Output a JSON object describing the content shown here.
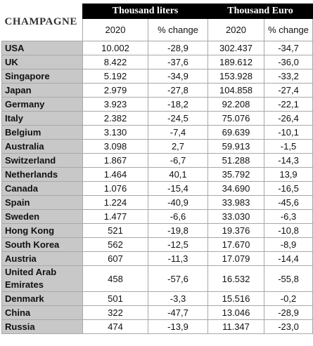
{
  "table": {
    "title": "CHAMPAGNE",
    "groups": [
      "Thousand liters",
      "Thousand Euro"
    ],
    "columns": [
      "2020",
      "% change",
      "2020",
      "% change"
    ],
    "rows": [
      [
        "USA",
        "10.002",
        "-28,9",
        "302.437",
        "-34,7"
      ],
      [
        "UK",
        "8.422",
        "-37,6",
        "189.612",
        "-36,0"
      ],
      [
        "Singapore",
        "5.192",
        "-34,9",
        "153.928",
        "-33,2"
      ],
      [
        "Japan",
        "2.979",
        "-27,8",
        "104.858",
        "-27,4"
      ],
      [
        "Germany",
        "3.923",
        "-18,2",
        "92.208",
        "-22,1"
      ],
      [
        "Italy",
        "2.382",
        "-24,5",
        "75.076",
        "-26,4"
      ],
      [
        "Belgium",
        "3.130",
        "-7,4",
        "69.639",
        "-10,1"
      ],
      [
        "Australia",
        "3.098",
        "2,7",
        "59.913",
        "-1,5"
      ],
      [
        "Switzerland",
        "1.867",
        "-6,7",
        "51.288",
        "-14,3"
      ],
      [
        "Netherlands",
        "1.464",
        "40,1",
        "35.792",
        "13,9"
      ],
      [
        "Canada",
        "1.076",
        "-15,4",
        "34.690",
        "-16,5"
      ],
      [
        "Spain",
        "1.224",
        "-40,9",
        "33.983",
        "-45,6"
      ],
      [
        "Sweden",
        "1.477",
        "-6,6",
        "33.030",
        "-6,3"
      ],
      [
        "Hong Kong",
        "521",
        "-19,8",
        "19.376",
        "-10,8"
      ],
      [
        "South Korea",
        "562",
        "-12,5",
        "17.670",
        "-8,9"
      ],
      [
        "Austria",
        "607",
        "-11,3",
        "17.079",
        "-14,4"
      ],
      [
        "United Arab Emirates",
        "458",
        "-57,6",
        "16.532",
        "-55,8"
      ],
      [
        "Denmark",
        "501",
        "-3,3",
        "15.516",
        "-0,2"
      ],
      [
        "China",
        "322",
        "-47,7",
        "13.046",
        "-28,9"
      ],
      [
        "Russia",
        "474",
        "-13,9",
        "11.347",
        "-23,0"
      ]
    ]
  }
}
